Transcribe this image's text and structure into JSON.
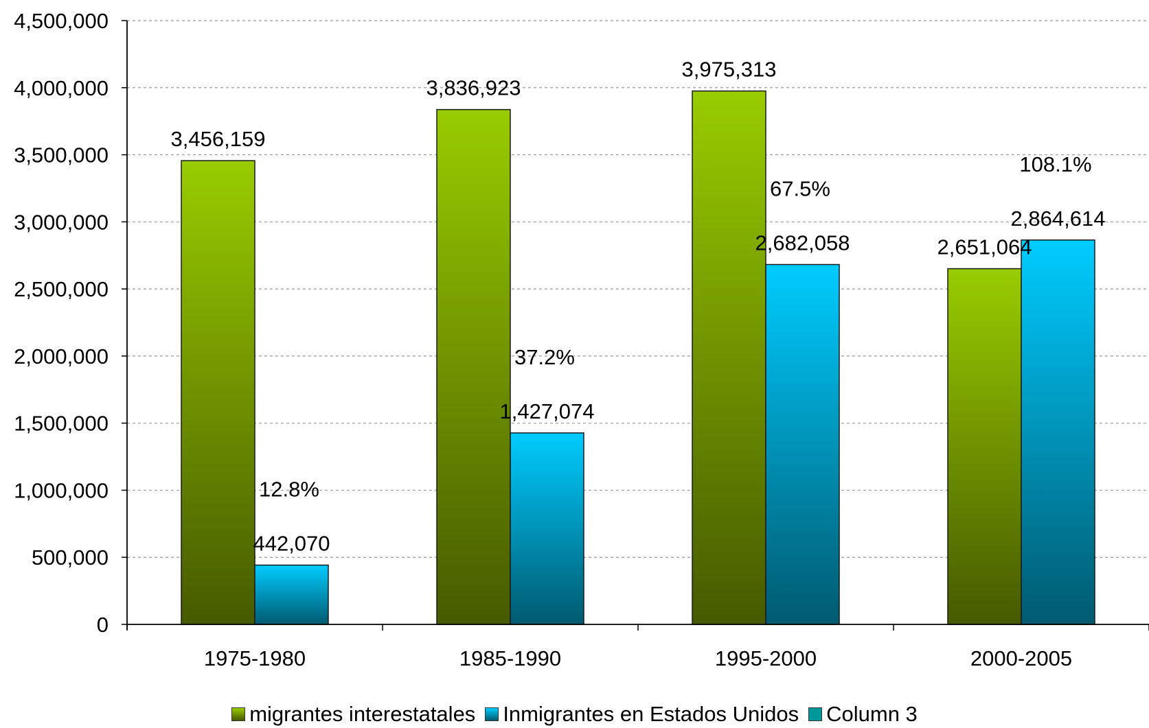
{
  "chart_data": {
    "type": "bar",
    "categories": [
      "1975-1980",
      "1985-1990",
      "1995-2000",
      "2000-2005"
    ],
    "series": [
      {
        "name": "migrantes interestatales",
        "values": [
          3456159,
          3836923,
          3975313,
          2651064
        ],
        "labels": [
          "3,456,159",
          "3,836,923",
          "3,975,313",
          "2,651,064"
        ],
        "color": "#99cc00"
      },
      {
        "name": "Inmigrantes en Estados Unidos",
        "values": [
          442070,
          1427074,
          2682058,
          2864614
        ],
        "labels": [
          "442,070",
          "1,427,074",
          "2,682,058",
          "2,864,614"
        ],
        "color": "#00ccff"
      },
      {
        "name": "Column 3",
        "values": [
          0.128,
          0.372,
          0.675,
          1.081
        ],
        "labels": [
          "12.8%",
          "37.2%",
          "67.5%",
          "108.1%"
        ],
        "color": "#009999"
      }
    ],
    "yticks": [
      "0",
      "500,000",
      "1,000,000",
      "1,500,000",
      "2,000,000",
      "2,500,000",
      "3,000,000",
      "3,500,000",
      "4,000,000",
      "4,500,000"
    ],
    "ylim": [
      0,
      4500000
    ],
    "grid": true,
    "legend_position": "bottom"
  }
}
